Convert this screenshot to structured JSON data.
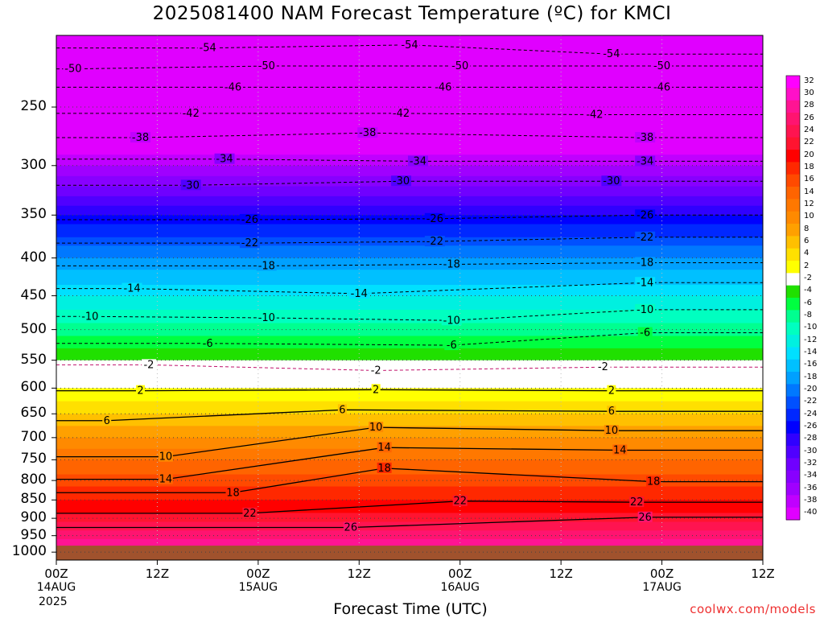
{
  "title": "2025081400 NAM Forecast Temperature (ºC) for KMCI",
  "source_label": "coolwx.com/models",
  "x_axis": {
    "title": "Forecast Time (UTC)",
    "ticks": [
      {
        "label": "00Z",
        "date": "14AUG"
      },
      {
        "label": "12Z",
        "date": ""
      },
      {
        "label": "00Z",
        "date": "15AUG"
      },
      {
        "label": "12Z",
        "date": ""
      },
      {
        "label": "00Z",
        "date": "16AUG"
      },
      {
        "label": "12Z",
        "date": ""
      },
      {
        "label": "00Z",
        "date": "17AUG"
      },
      {
        "label": "12Z",
        "date": ""
      }
    ],
    "year": "2025"
  },
  "y_axis": {
    "ticks": [
      "250",
      "300",
      "350",
      "400",
      "450",
      "500",
      "550",
      "600",
      "650",
      "700",
      "750",
      "800",
      "850",
      "900",
      "950",
      "1000"
    ]
  },
  "colorbar": {
    "labels": [
      "32",
      "30",
      "28",
      "26",
      "24",
      "22",
      "20",
      "18",
      "16",
      "14",
      "12",
      "10",
      "8",
      "6",
      "4",
      "2",
      "-2",
      "-4",
      "-6",
      "-8",
      "-10",
      "-12",
      "-14",
      "-16",
      "-18",
      "-20",
      "-22",
      "-24",
      "-26",
      "-28",
      "-30",
      "-32",
      "-34",
      "-36",
      "-38",
      "-40"
    ],
    "colors": [
      "#ff00ff",
      "#ff10c8",
      "#ff1493",
      "#ff1470",
      "#ff1450",
      "#ff1430",
      "#ff0000",
      "#ff2800",
      "#ff4a00",
      "#ff6400",
      "#ff7800",
      "#ff8a00",
      "#ffa000",
      "#ffc000",
      "#ffe000",
      "#ffff00",
      "#ffffff",
      "#20e000",
      "#00ff40",
      "#00ff90",
      "#00ffc0",
      "#00f0e0",
      "#00e0ff",
      "#00c0ff",
      "#00a0ff",
      "#0078ff",
      "#0050ff",
      "#0028ff",
      "#0000ff",
      "#3000ff",
      "#5000ff",
      "#7000ff",
      "#8800ff",
      "#a000ff",
      "#c000ff",
      "#e000ff"
    ]
  },
  "chart_data": {
    "type": "heatmap",
    "title": "2025081400 NAM Forecast Temperature (ºC) for KMCI",
    "xlabel": "Forecast Time (UTC)",
    "ylabel": "",
    "x_hours_range": [
      0,
      84
    ],
    "y_pressure_range": [
      200,
      1025
    ],
    "y_scale": "log-pressure",
    "surface_pressure_hPa": 980,
    "grid": true,
    "contour_labels_negative": [
      {
        "value": -54,
        "labels": [
          [
            18,
            208
          ],
          [
            42,
            206
          ],
          [
            66,
            212
          ]
        ]
      },
      {
        "value": -50,
        "labels": [
          [
            2,
            222
          ],
          [
            25,
            220
          ],
          [
            48,
            220
          ],
          [
            72,
            220
          ]
        ]
      },
      {
        "value": -46,
        "labels": [
          [
            21,
            235
          ],
          [
            46,
            235
          ],
          [
            72,
            235
          ]
        ]
      },
      {
        "value": -42,
        "labels": [
          [
            16,
            255
          ],
          [
            41,
            255
          ],
          [
            64,
            256
          ]
        ]
      },
      {
        "value": -38,
        "labels": [
          [
            10,
            275
          ],
          [
            37,
            271
          ],
          [
            70,
            275
          ]
        ]
      },
      {
        "value": -34,
        "labels": [
          [
            20,
            294
          ],
          [
            43,
            296
          ],
          [
            70,
            296
          ]
        ]
      },
      {
        "value": -30,
        "labels": [
          [
            16,
            319
          ],
          [
            41,
            315
          ],
          [
            66,
            315
          ]
        ]
      },
      {
        "value": -26,
        "labels": [
          [
            23,
            355
          ],
          [
            45,
            354
          ],
          [
            70,
            350
          ]
        ]
      },
      {
        "value": -22,
        "labels": [
          [
            23,
            382
          ],
          [
            45,
            380
          ],
          [
            70,
            375
          ]
        ]
      },
      {
        "value": -18,
        "labels": [
          [
            25,
            410
          ],
          [
            47,
            408
          ],
          [
            70,
            406
          ]
        ]
      },
      {
        "value": -14,
        "labels": [
          [
            9,
            440
          ],
          [
            36,
            447
          ],
          [
            70,
            432
          ]
        ]
      },
      {
        "value": -10,
        "labels": [
          [
            4,
            480
          ],
          [
            25,
            482
          ],
          [
            47,
            486
          ],
          [
            70,
            470
          ]
        ]
      },
      {
        "value": -6,
        "labels": [
          [
            18,
            522
          ],
          [
            47,
            525
          ],
          [
            70,
            505
          ]
        ]
      },
      {
        "value": -2,
        "labels": [
          [
            11,
            558
          ],
          [
            38,
            568
          ],
          [
            65,
            562
          ]
        ]
      }
    ],
    "contour_labels_positive": [
      {
        "value": 2,
        "labels": [
          [
            10,
            605
          ],
          [
            38,
            603
          ],
          [
            66,
            605
          ]
        ]
      },
      {
        "value": 6,
        "labels": [
          [
            6,
            664
          ],
          [
            34,
            642
          ],
          [
            66,
            645
          ]
        ]
      },
      {
        "value": 10,
        "labels": [
          [
            13,
            743
          ],
          [
            38,
            678
          ],
          [
            66,
            685
          ]
        ]
      },
      {
        "value": 14,
        "labels": [
          [
            13,
            797
          ],
          [
            39,
            722
          ],
          [
            67,
            728
          ]
        ]
      },
      {
        "value": 18,
        "labels": [
          [
            21,
            831
          ],
          [
            39,
            770
          ],
          [
            71,
            803
          ]
        ]
      },
      {
        "value": 22,
        "labels": [
          [
            23,
            886
          ],
          [
            48,
            853
          ],
          [
            69,
            856
          ]
        ]
      },
      {
        "value": 26,
        "labels": [
          [
            35,
            926
          ],
          [
            70,
            897
          ]
        ]
      }
    ],
    "temperature_profile_mean": [
      {
        "pressure": 250,
        "temp": -46
      },
      {
        "pressure": 300,
        "temp": -36
      },
      {
        "pressure": 350,
        "temp": -26
      },
      {
        "pressure": 400,
        "temp": -18
      },
      {
        "pressure": 450,
        "temp": -12
      },
      {
        "pressure": 500,
        "temp": -7
      },
      {
        "pressure": 550,
        "temp": -2
      },
      {
        "pressure": 600,
        "temp": 2
      },
      {
        "pressure": 650,
        "temp": 6
      },
      {
        "pressure": 700,
        "temp": 10
      },
      {
        "pressure": 750,
        "temp": 14
      },
      {
        "pressure": 800,
        "temp": 17
      },
      {
        "pressure": 850,
        "temp": 20
      },
      {
        "pressure": 900,
        "temp": 23
      },
      {
        "pressure": 950,
        "temp": 27
      }
    ]
  }
}
